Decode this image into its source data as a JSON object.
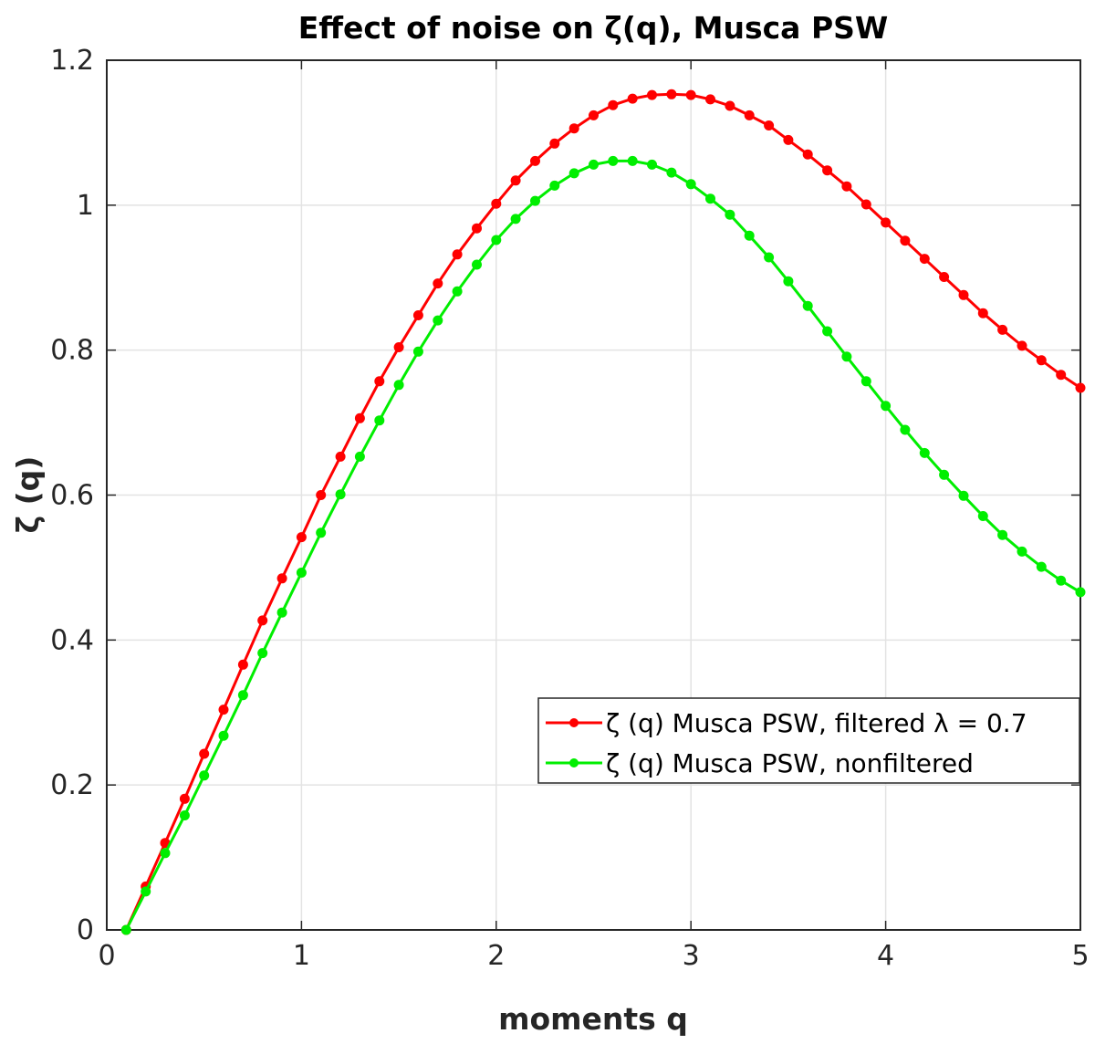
{
  "chart_data": {
    "type": "line",
    "title": "Effect of noise on ζ(q), Musca PSW",
    "xlabel": "moments q",
    "ylabel": "ζ (q)",
    "xlim": [
      0,
      5
    ],
    "ylim": [
      0,
      1.2
    ],
    "xticks": [
      0,
      1,
      2,
      3,
      4,
      5
    ],
    "xtick_labels": [
      "0",
      "1",
      "2",
      "3",
      "4",
      "5"
    ],
    "yticks": [
      0,
      0.2,
      0.4,
      0.6,
      0.8,
      1.0,
      1.2
    ],
    "ytick_labels": [
      "0",
      "0.2",
      "0.4",
      "0.6",
      "0.8",
      "1",
      "1.2"
    ],
    "grid": true,
    "legend_position": "lower-right",
    "x": [
      0.1,
      0.2,
      0.3,
      0.4,
      0.5,
      0.6,
      0.7,
      0.8,
      0.9,
      1.0,
      1.1,
      1.2,
      1.3,
      1.4,
      1.5,
      1.6,
      1.7,
      1.8,
      1.9,
      2.0,
      2.1,
      2.2,
      2.3,
      2.4,
      2.5,
      2.6,
      2.7,
      2.8,
      2.9,
      3.0,
      3.1,
      3.2,
      3.3,
      3.4,
      3.5,
      3.6,
      3.7,
      3.8,
      3.9,
      4.0,
      4.1,
      4.2,
      4.3,
      4.4,
      4.5,
      4.6,
      4.7,
      4.8,
      4.9,
      5.0
    ],
    "series": [
      {
        "name": "ζ (q) Musca PSW, filtered λ = 0.7",
        "color": "#ff0000",
        "values": [
          0.0,
          0.06,
          0.12,
          0.181,
          0.243,
          0.304,
          0.366,
          0.427,
          0.485,
          0.542,
          0.6,
          0.653,
          0.706,
          0.757,
          0.804,
          0.848,
          0.892,
          0.932,
          0.968,
          1.002,
          1.034,
          1.061,
          1.085,
          1.106,
          1.124,
          1.138,
          1.147,
          1.152,
          1.153,
          1.152,
          1.146,
          1.137,
          1.124,
          1.11,
          1.09,
          1.07,
          1.048,
          1.026,
          1.001,
          0.976,
          0.951,
          0.926,
          0.901,
          0.876,
          0.851,
          0.828,
          0.806,
          0.786,
          0.766,
          0.748
        ]
      },
      {
        "name": "ζ (q) Musca PSW, nonfiltered",
        "color": "#00ee00",
        "values": [
          0.0,
          0.053,
          0.106,
          0.158,
          0.213,
          0.268,
          0.324,
          0.382,
          0.438,
          0.493,
          0.548,
          0.601,
          0.653,
          0.703,
          0.752,
          0.798,
          0.841,
          0.881,
          0.918,
          0.952,
          0.981,
          1.006,
          1.027,
          1.044,
          1.056,
          1.061,
          1.061,
          1.056,
          1.045,
          1.029,
          1.009,
          0.987,
          0.958,
          0.928,
          0.895,
          0.861,
          0.826,
          0.791,
          0.757,
          0.723,
          0.69,
          0.658,
          0.628,
          0.599,
          0.571,
          0.545,
          0.522,
          0.501,
          0.482,
          0.466
        ]
      }
    ]
  }
}
